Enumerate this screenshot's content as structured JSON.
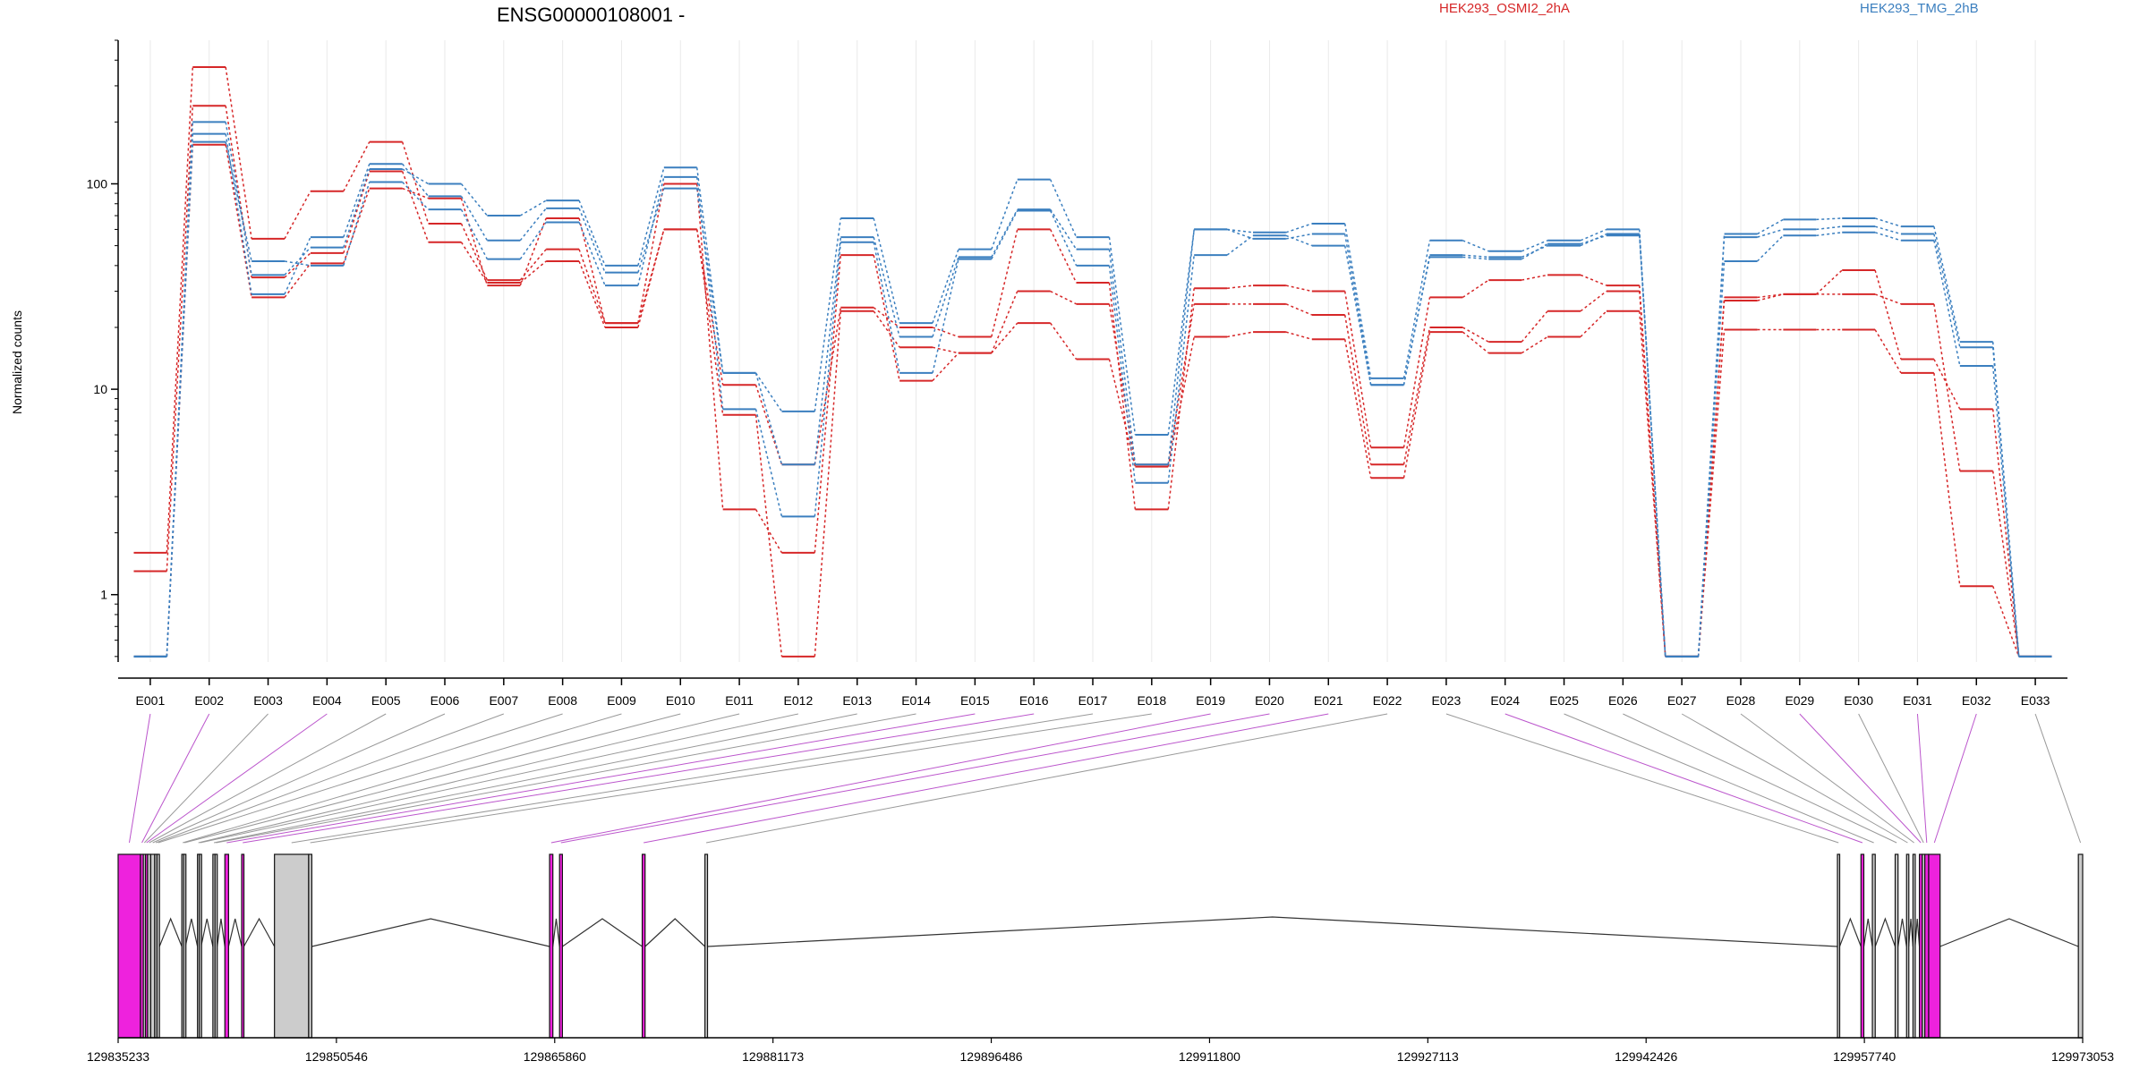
{
  "title": "ENSG00000108001 -",
  "colors": {
    "group_a": "#d62728",
    "group_b": "#3b7fbf",
    "exon_diff": "#ee22dd",
    "exon_normal": "#cccccc",
    "connector_diff": "#bb55cc",
    "connector_normal": "#999999"
  },
  "legend": [
    {
      "label": "HEK293_OSMI2_2hA",
      "color": "#d62728"
    },
    {
      "label": "HEK293_TMG_2hB",
      "color": "#3b7fbf"
    }
  ],
  "chart_data": {
    "type": "line",
    "title": "ENSG00000108001 -",
    "ylabel": "Normalized counts",
    "yscale": "log",
    "ylim": [
      0.47,
      500
    ],
    "yticks": [
      1,
      10,
      100
    ],
    "ytick_labels": [
      "1",
      "10",
      "100"
    ],
    "categories": [
      "E001",
      "E002",
      "E003",
      "E004",
      "E005",
      "E006",
      "E007",
      "E008",
      "E009",
      "E010",
      "E011",
      "E012",
      "E013",
      "E014",
      "E015",
      "E016",
      "E017",
      "E018",
      "E019",
      "E020",
      "E021",
      "E022",
      "E023",
      "E024",
      "E025",
      "E026",
      "E027",
      "E028",
      "E029",
      "E030",
      "E031",
      "E032",
      "E033"
    ],
    "series": [
      {
        "group": "HEK293_OSMI2_2hA",
        "values": [
          1.6,
          370,
          54,
          92,
          160,
          64,
          34,
          48,
          21,
          60,
          10.5,
          4.3,
          25,
          20,
          18,
          60,
          33,
          2.6,
          31,
          32,
          30,
          5.2,
          28,
          34,
          36,
          32,
          0.5,
          28,
          29,
          38,
          14,
          8,
          0.5
        ]
      },
      {
        "group": "HEK293_OSMI2_2hA",
        "values": [
          1.3,
          240,
          35,
          46,
          115,
          52,
          33,
          42,
          20,
          60,
          7.5,
          0.5,
          24,
          16,
          15,
          30,
          26,
          4.3,
          26,
          26,
          23,
          4.3,
          20,
          17,
          24,
          30,
          0.5,
          27,
          29,
          29,
          26,
          4,
          0.5
        ]
      },
      {
        "group": "HEK293_OSMI2_2hA",
        "values": [
          0.5,
          155,
          28,
          41,
          95,
          85,
          32,
          68,
          21,
          100,
          2.6,
          1.6,
          45,
          11,
          15,
          21,
          14,
          4.2,
          18,
          19,
          17.5,
          3.7,
          19,
          15,
          18,
          24,
          0.5,
          19.5,
          19.5,
          19.5,
          12,
          1.1,
          0.5
        ]
      },
      {
        "group": "HEK293_TMG_2hB",
        "values": [
          0.5,
          200,
          36,
          49,
          118,
          100,
          70,
          83,
          40,
          120,
          12,
          7.8,
          68,
          21,
          48,
          105,
          55,
          6,
          60,
          58,
          64,
          11.3,
          53,
          47,
          53,
          60,
          0.5,
          57,
          67,
          68,
          62,
          17,
          0.5
        ]
      },
      {
        "group": "HEK293_TMG_2hB",
        "values": [
          0.5,
          175,
          29,
          55,
          125,
          87,
          53,
          76,
          37,
          95,
          12,
          4.3,
          55,
          18,
          44,
          75,
          48,
          4.3,
          60,
          54,
          57,
          10.5,
          45,
          44,
          50,
          57,
          0.5,
          55,
          60,
          62,
          57,
          16,
          0.5
        ]
      },
      {
        "group": "HEK293_TMG_2hB",
        "values": [
          0.5,
          160,
          42,
          40,
          102,
          75,
          43,
          65,
          32,
          108,
          8,
          2.4,
          52,
          12,
          43,
          74,
          40,
          3.5,
          45,
          56,
          50,
          10.5,
          44,
          43,
          51,
          56,
          0.5,
          42,
          56,
          58,
          53,
          13,
          0.5
        ]
      }
    ]
  },
  "gene_model": {
    "start": 129835233,
    "end": 129973053,
    "tick_positions": [
      129835233,
      129850546,
      129865860,
      129881173,
      129896486,
      129911800,
      129927113,
      129942426,
      129957740,
      129973053
    ],
    "tick_labels": [
      "129835233",
      "129850546",
      "129865860",
      "129881173",
      "129896486",
      "129911800",
      "129927113",
      "129942426",
      "129957740",
      "129973053"
    ],
    "exons": [
      {
        "id": "E001",
        "start": 129835233,
        "end": 129836800,
        "diff": true
      },
      {
        "id": "E002",
        "start": 129836800,
        "end": 129837000,
        "diff": true
      },
      {
        "id": "E003",
        "start": 129837000,
        "end": 129837150,
        "diff": false
      },
      {
        "id": "E004",
        "start": 129837150,
        "end": 129837300,
        "diff": true
      },
      {
        "id": "E005",
        "start": 129837300,
        "end": 129837520,
        "diff": false
      },
      {
        "id": "E006",
        "start": 129837520,
        "end": 129837800,
        "diff": false
      },
      {
        "id": "E007",
        "start": 129837800,
        "end": 129837960,
        "diff": false
      },
      {
        "id": "E008",
        "start": 129837960,
        "end": 129838130,
        "diff": false
      },
      {
        "id": "E009",
        "start": 129839700,
        "end": 129839830,
        "diff": false
      },
      {
        "id": "E010",
        "start": 129839830,
        "end": 129839950,
        "diff": false
      },
      {
        "id": "E011",
        "start": 129840800,
        "end": 129840930,
        "diff": false
      },
      {
        "id": "E012",
        "start": 129840930,
        "end": 129841050,
        "diff": false
      },
      {
        "id": "E013",
        "start": 129841880,
        "end": 129842030,
        "diff": false
      },
      {
        "id": "E014",
        "start": 129842030,
        "end": 129842180,
        "diff": false
      },
      {
        "id": "E015",
        "start": 129842720,
        "end": 129842980,
        "diff": true
      },
      {
        "id": "E016",
        "start": 129843900,
        "end": 129844050,
        "diff": true
      },
      {
        "id": "E017",
        "start": 129846200,
        "end": 129848600,
        "diff": false
      },
      {
        "id": "E018",
        "start": 129848600,
        "end": 129848820,
        "diff": false
      },
      {
        "id": "E019",
        "start": 129865500,
        "end": 129865730,
        "diff": true
      },
      {
        "id": "E020",
        "start": 129866200,
        "end": 129866400,
        "diff": true
      },
      {
        "id": "E021",
        "start": 129872000,
        "end": 129872200,
        "diff": true
      },
      {
        "id": "E022",
        "start": 129876400,
        "end": 129876580,
        "diff": false
      },
      {
        "id": "E023",
        "start": 129955850,
        "end": 129956000,
        "diff": false
      },
      {
        "id": "E024",
        "start": 129957500,
        "end": 129957700,
        "diff": true
      },
      {
        "id": "E025",
        "start": 129958300,
        "end": 129958500,
        "diff": false
      },
      {
        "id": "E026",
        "start": 129959900,
        "end": 129960100,
        "diff": false
      },
      {
        "id": "E027",
        "start": 129960700,
        "end": 129960850,
        "diff": false
      },
      {
        "id": "E028",
        "start": 129961150,
        "end": 129961300,
        "diff": false
      },
      {
        "id": "E029",
        "start": 129961600,
        "end": 129961800,
        "diff": true
      },
      {
        "id": "E030",
        "start": 129961800,
        "end": 129961980,
        "diff": false
      },
      {
        "id": "E031",
        "start": 129961980,
        "end": 129962250,
        "diff": true
      },
      {
        "id": "E032",
        "start": 129962250,
        "end": 129963050,
        "diff": true
      },
      {
        "id": "E033",
        "start": 129972750,
        "end": 129973053,
        "diff": false
      }
    ]
  }
}
